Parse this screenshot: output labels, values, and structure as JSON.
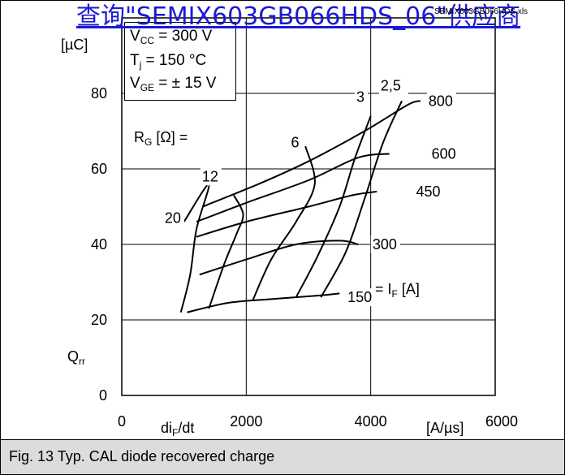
{
  "watermark": {
    "link_text": "查询\"SEMIX603GB066HDS_06\"供应商",
    "file_label": "SEMIX603GB066HDS.xls"
  },
  "conditions": {
    "vcc_symbol": "V",
    "vcc_sub": "CC",
    "vcc_value": " = 300 V",
    "tj_symbol": "T",
    "tj_sub": "j",
    "tj_value": " = 150 °C",
    "vge_symbol": "V",
    "vge_sub": "GE",
    "vge_value": " = ± 15 V"
  },
  "axis_labels": {
    "y_unit": "[µC]",
    "y_symbol": "Q",
    "y_sub": "rr",
    "x_symbol": "di",
    "x_sub": "F",
    "x_tail": "/dt",
    "x_unit": "[A/µs]"
  },
  "rg_label": {
    "prefix": "R",
    "sub": "G",
    "suffix": " [Ω] ="
  },
  "if_label": {
    "prefix": "= I",
    "sub": "F",
    "suffix": " [A]"
  },
  "caption": "Fig. 13 Typ. CAL diode recovered charge",
  "chart_data": {
    "type": "line",
    "title": "",
    "xlabel": "di_F/dt [A/µs]",
    "ylabel": "Q_rr [µC]",
    "xlim": [
      0,
      6000
    ],
    "ylim": [
      0,
      100
    ],
    "x_ticks": [
      "0",
      "2000",
      "4000",
      "6000"
    ],
    "y_ticks": [
      "0",
      "20",
      "40",
      "60",
      "80"
    ],
    "grid": true,
    "current_labels": [
      "800",
      "600",
      "450",
      "300",
      "150"
    ],
    "rg_labels": [
      "2,5",
      "3",
      "6",
      "12",
      "20"
    ],
    "series": [
      {
        "name": "800",
        "group": "IF",
        "x": [
          1300,
          2200,
          3000,
          3900,
          4600,
          4800
        ],
        "y": [
          50,
          56,
          62,
          70,
          77,
          78
        ]
      },
      {
        "name": "600",
        "group": "IF",
        "x": [
          1200,
          2000,
          3000,
          3800,
          4300
        ],
        "y": [
          46,
          51,
          57,
          63,
          64
        ]
      },
      {
        "name": "450",
        "group": "IF",
        "x": [
          1200,
          2000,
          3000,
          3700,
          4100
        ],
        "y": [
          42,
          46,
          50,
          53,
          54
        ]
      },
      {
        "name": "300",
        "group": "IF",
        "x": [
          1250,
          2000,
          2800,
          3500,
          3800
        ],
        "y": [
          32,
          36,
          40,
          41,
          40
        ]
      },
      {
        "name": "150",
        "group": "IF",
        "x": [
          1050,
          1700,
          2400,
          3200,
          3500
        ],
        "y": [
          22,
          24.5,
          25.5,
          26.5,
          27
        ]
      },
      {
        "name": "2,5",
        "group": "RG",
        "x": [
          4500,
          4200,
          3900,
          3600,
          3200
        ],
        "y": [
          78,
          67,
          52,
          38,
          26
        ]
      },
      {
        "name": "3",
        "group": "RG",
        "x": [
          4000,
          3750,
          3500,
          3150,
          2800
        ],
        "y": [
          74,
          63,
          50,
          37,
          26
        ]
      },
      {
        "name": "6",
        "group": "RG",
        "x": [
          2950,
          3100,
          2800,
          2400,
          2100
        ],
        "y": [
          66,
          56,
          46,
          36,
          25
        ]
      },
      {
        "name": "12",
        "group": "RG",
        "x": [
          1800,
          1950,
          1850,
          1650,
          1400
        ],
        "y": [
          53,
          48,
          43,
          35,
          23
        ]
      },
      {
        "name": "20",
        "group": "RG",
        "x": [
          1000,
          1400,
          1200,
          1100,
          950
        ],
        "y": [
          46,
          56,
          44,
          32,
          22
        ]
      }
    ]
  }
}
